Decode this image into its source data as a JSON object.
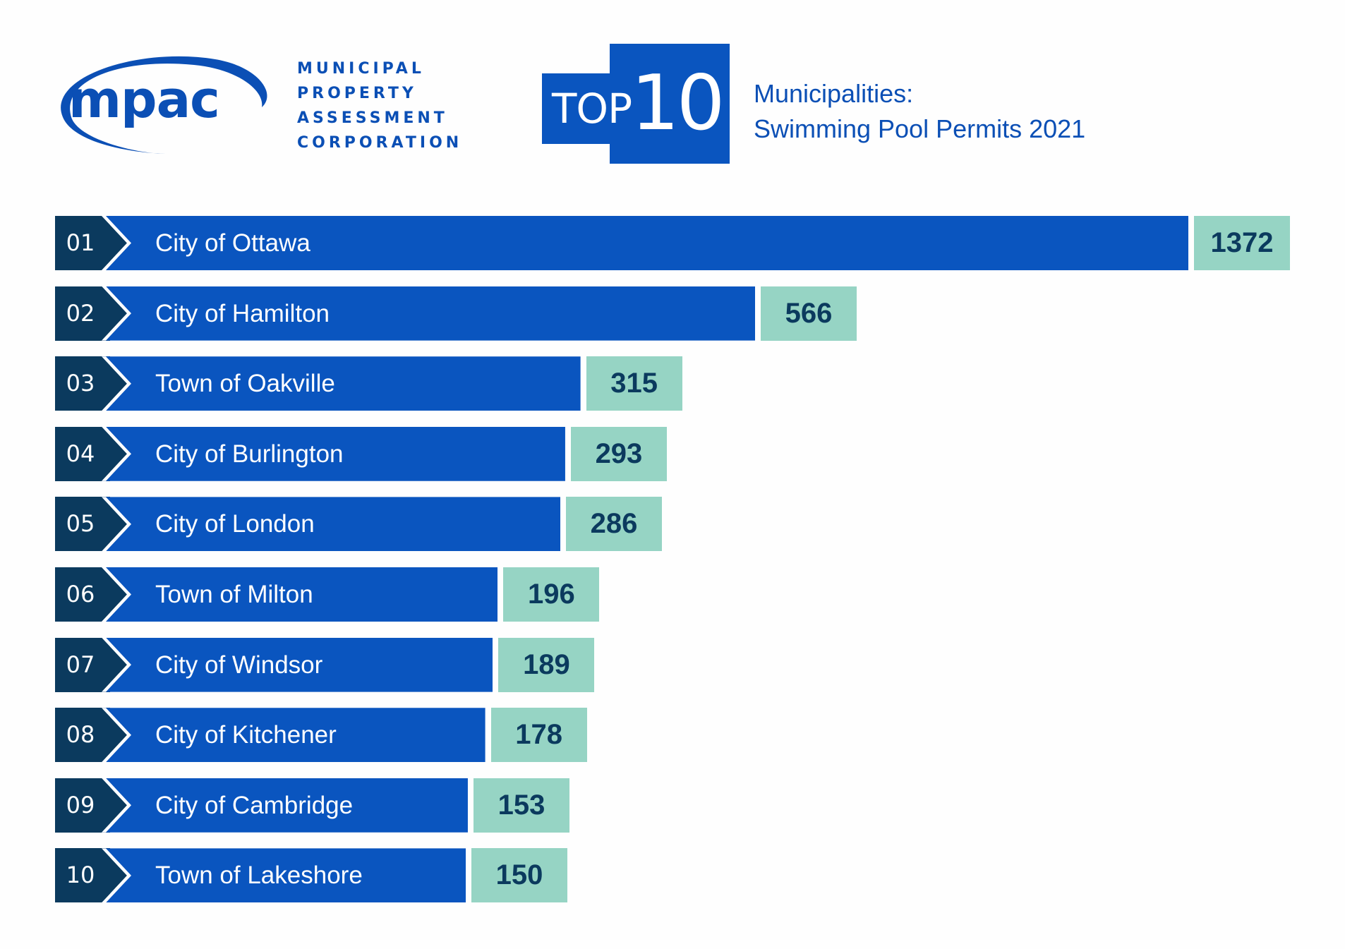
{
  "logo": {
    "wordmark": "mpac",
    "lines": [
      "MUNICIPAL",
      "PROPERTY",
      "ASSESSMENT",
      "CORPORATION"
    ]
  },
  "badge": {
    "top": "TOP",
    "number": "10"
  },
  "title": {
    "line1": "Municipalities:",
    "line2": "Swimming Pool Permits 2021"
  },
  "colors": {
    "bar": "#0a55bf",
    "rank": "#0b3a5e",
    "value_box": "#96d4c4",
    "value_text": "#0b3a5e",
    "brand": "#0b4fb5"
  },
  "chart_data": {
    "type": "bar",
    "orientation": "horizontal",
    "title": "Municipalities: Swimming Pool Permits 2021",
    "ranks": [
      "01",
      "02",
      "03",
      "04",
      "05",
      "06",
      "07",
      "08",
      "09",
      "10"
    ],
    "categories": [
      "City of Ottawa",
      "City of Hamilton",
      "Town of Oakville",
      "City of Burlington",
      "City of London",
      "Town of Milton",
      "City of Windsor",
      "City of Kitchener",
      "City of Cambridge",
      "Town of Lakeshore"
    ],
    "values": [
      1372,
      566,
      315,
      293,
      286,
      196,
      189,
      178,
      153,
      150
    ],
    "xlabel": "",
    "ylabel": ""
  }
}
